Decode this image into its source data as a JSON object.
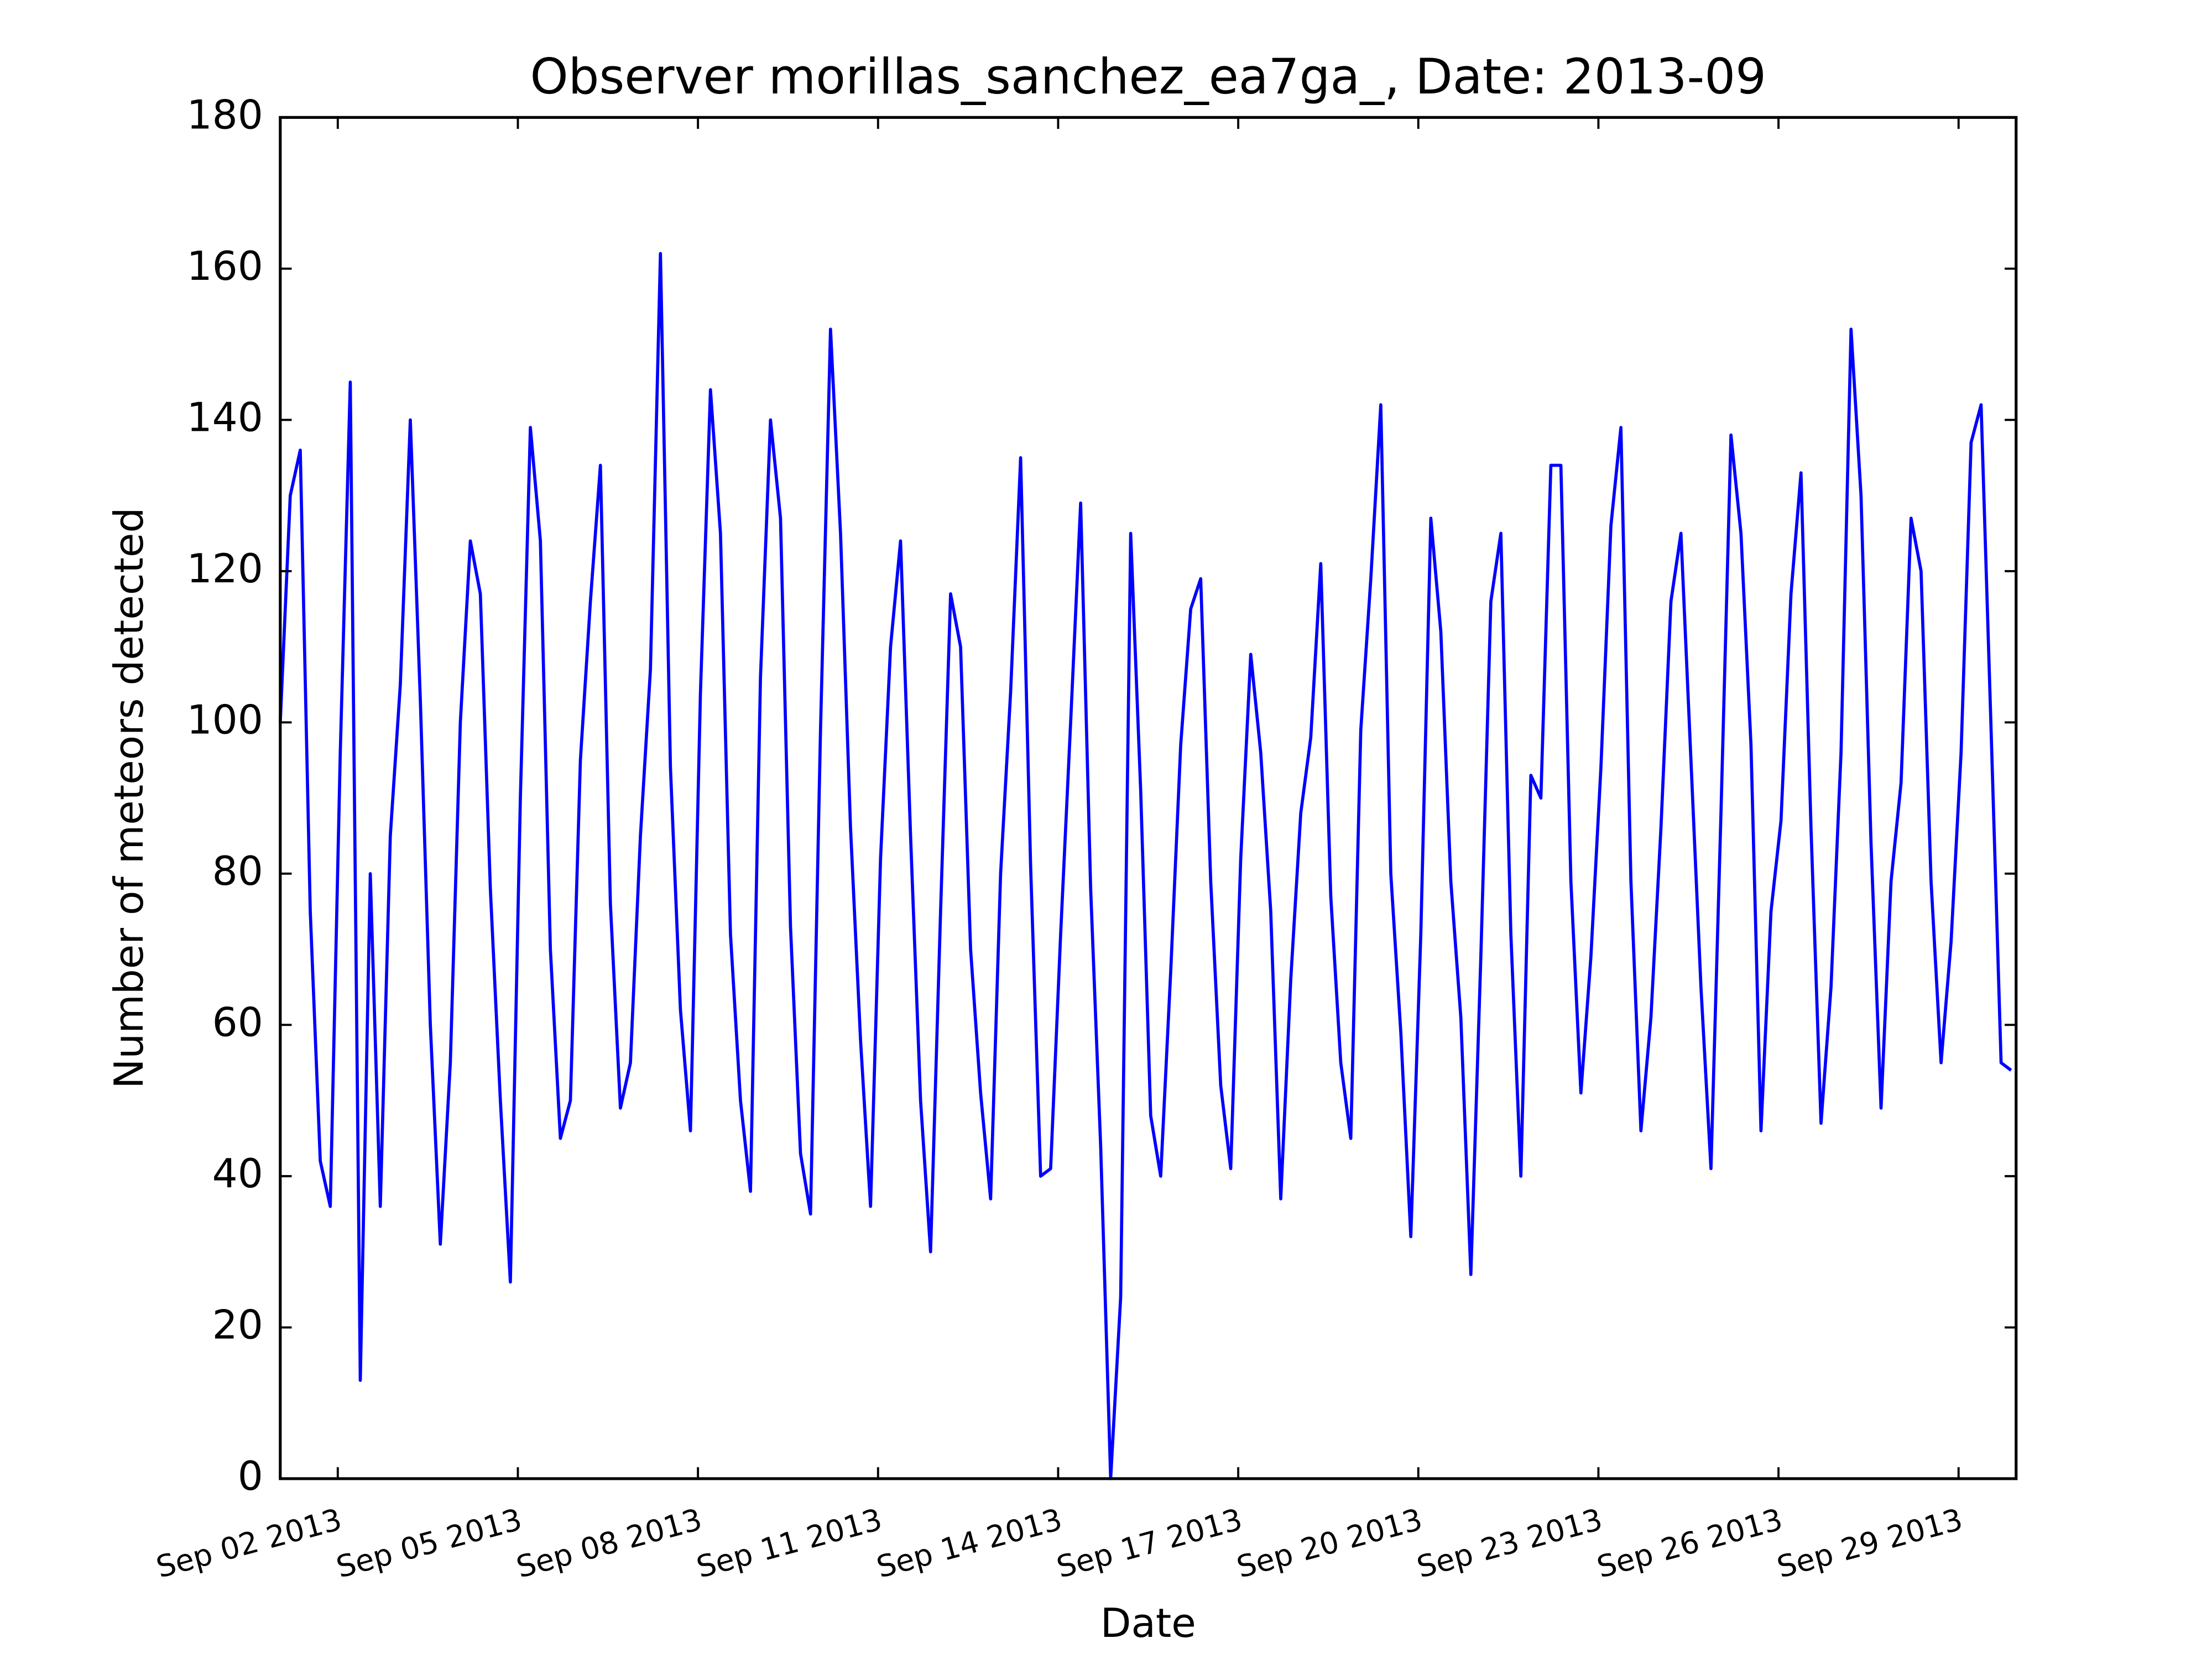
{
  "chart_data": {
    "type": "line",
    "title": "Observer morillas_sanchez_ea7ga_, Date: 2013-09",
    "x_label": "Date",
    "y_label": "Number of meteors detected",
    "x": [
      "2013-09-01 01:00",
      "2013-09-01 05:00",
      "2013-09-01 09:00",
      "2013-09-01 13:00",
      "2013-09-01 17:00",
      "2013-09-01 21:00",
      "2013-09-02 01:00",
      "2013-09-02 05:00",
      "2013-09-02 09:00",
      "2013-09-02 13:00",
      "2013-09-02 17:00",
      "2013-09-02 21:00",
      "2013-09-03 01:00",
      "2013-09-03 05:00",
      "2013-09-03 09:00",
      "2013-09-03 13:00",
      "2013-09-03 17:00",
      "2013-09-03 21:00",
      "2013-09-04 01:00",
      "2013-09-04 05:00",
      "2013-09-04 09:00",
      "2013-09-04 13:00",
      "2013-09-04 17:00",
      "2013-09-04 21:00",
      "2013-09-05 01:00",
      "2013-09-05 05:00",
      "2013-09-05 09:00",
      "2013-09-05 13:00",
      "2013-09-05 17:00",
      "2013-09-05 21:00",
      "2013-09-06 01:00",
      "2013-09-06 05:00",
      "2013-09-06 09:00",
      "2013-09-06 13:00",
      "2013-09-06 17:00",
      "2013-09-06 21:00",
      "2013-09-07 01:00",
      "2013-09-07 05:00",
      "2013-09-07 09:00",
      "2013-09-07 13:00",
      "2013-09-07 17:00",
      "2013-09-07 21:00",
      "2013-09-08 01:00",
      "2013-09-08 05:00",
      "2013-09-08 09:00",
      "2013-09-08 13:00",
      "2013-09-08 17:00",
      "2013-09-08 21:00",
      "2013-09-09 01:00",
      "2013-09-09 05:00",
      "2013-09-09 09:00",
      "2013-09-09 13:00",
      "2013-09-09 17:00",
      "2013-09-09 21:00",
      "2013-09-10 01:00",
      "2013-09-10 05:00",
      "2013-09-10 09:00",
      "2013-09-10 13:00",
      "2013-09-10 17:00",
      "2013-09-10 21:00",
      "2013-09-11 01:00",
      "2013-09-11 05:00",
      "2013-09-11 09:00",
      "2013-09-11 13:00",
      "2013-09-11 17:00",
      "2013-09-11 21:00",
      "2013-09-12 01:00",
      "2013-09-12 05:00",
      "2013-09-12 09:00",
      "2013-09-12 13:00",
      "2013-09-12 17:00",
      "2013-09-12 21:00",
      "2013-09-13 01:00",
      "2013-09-13 05:00",
      "2013-09-13 09:00",
      "2013-09-13 13:00",
      "2013-09-13 17:00",
      "2013-09-13 21:00",
      "2013-09-14 01:00",
      "2013-09-14 05:00",
      "2013-09-14 09:00",
      "2013-09-14 13:00",
      "2013-09-14 17:00",
      "2013-09-14 21:00",
      "2013-09-15 01:00",
      "2013-09-15 05:00",
      "2013-09-15 09:00",
      "2013-09-15 13:00",
      "2013-09-15 17:00",
      "2013-09-15 21:00",
      "2013-09-16 01:00",
      "2013-09-16 05:00",
      "2013-09-16 09:00",
      "2013-09-16 13:00",
      "2013-09-16 17:00",
      "2013-09-16 21:00",
      "2013-09-17 01:00",
      "2013-09-17 05:00",
      "2013-09-17 09:00",
      "2013-09-17 13:00",
      "2013-09-17 17:00",
      "2013-09-17 21:00",
      "2013-09-18 01:00",
      "2013-09-18 05:00",
      "2013-09-18 09:00",
      "2013-09-18 13:00",
      "2013-09-18 17:00",
      "2013-09-18 21:00",
      "2013-09-19 01:00",
      "2013-09-19 05:00",
      "2013-09-19 09:00",
      "2013-09-19 13:00",
      "2013-09-19 17:00",
      "2013-09-19 21:00",
      "2013-09-20 01:00",
      "2013-09-20 05:00",
      "2013-09-20 09:00",
      "2013-09-20 13:00",
      "2013-09-20 17:00",
      "2013-09-20 21:00",
      "2013-09-21 01:00",
      "2013-09-21 05:00",
      "2013-09-21 09:00",
      "2013-09-21 13:00",
      "2013-09-21 17:00",
      "2013-09-21 21:00",
      "2013-09-22 01:00",
      "2013-09-22 05:00",
      "2013-09-22 09:00",
      "2013-09-22 13:00",
      "2013-09-22 17:00",
      "2013-09-22 21:00",
      "2013-09-23 01:00",
      "2013-09-23 05:00",
      "2013-09-23 09:00",
      "2013-09-23 13:00",
      "2013-09-23 17:00",
      "2013-09-23 21:00",
      "2013-09-24 01:00",
      "2013-09-24 05:00",
      "2013-09-24 09:00",
      "2013-09-24 13:00",
      "2013-09-24 17:00",
      "2013-09-24 21:00",
      "2013-09-25 01:00",
      "2013-09-25 05:00",
      "2013-09-25 09:00",
      "2013-09-25 13:00",
      "2013-09-25 17:00",
      "2013-09-25 21:00",
      "2013-09-26 01:00",
      "2013-09-26 05:00",
      "2013-09-26 09:00",
      "2013-09-26 13:00",
      "2013-09-26 17:00",
      "2013-09-26 21:00",
      "2013-09-27 01:00",
      "2013-09-27 05:00",
      "2013-09-27 09:00",
      "2013-09-27 13:00",
      "2013-09-27 17:00",
      "2013-09-27 21:00",
      "2013-09-28 01:00",
      "2013-09-28 05:00",
      "2013-09-28 09:00",
      "2013-09-28 13:00",
      "2013-09-28 17:00",
      "2013-09-28 21:00",
      "2013-09-29 01:00",
      "2013-09-29 05:00",
      "2013-09-29 09:00",
      "2013-09-29 13:00",
      "2013-09-29 17:00",
      "2013-09-29 21:00"
    ],
    "series": [
      {
        "name": "meteors",
        "color": "#0000ff",
        "values": [
          100,
          130,
          136,
          75,
          42,
          36,
          96,
          145,
          13,
          80,
          36,
          85,
          105,
          140,
          103,
          60,
          31,
          55,
          100,
          124,
          117,
          78,
          50,
          26,
          90,
          139,
          124,
          70,
          45,
          50,
          95,
          116,
          134,
          76,
          49,
          55,
          85,
          107,
          162,
          94,
          62,
          46,
          104,
          144,
          125,
          72,
          50,
          38,
          106,
          140,
          127,
          73,
          43,
          35,
          99,
          152,
          125,
          86,
          58,
          36,
          82,
          110,
          124,
          85,
          50,
          30,
          75,
          117,
          110,
          70,
          51,
          37,
          80,
          104,
          135,
          81,
          40,
          41,
          72,
          100,
          129,
          78,
          44,
          0,
          24,
          125,
          91,
          48,
          40,
          67,
          97,
          115,
          119,
          79,
          52,
          41,
          82,
          109,
          96,
          75,
          37,
          66,
          88,
          98,
          121,
          77,
          55,
          45,
          99,
          119,
          142,
          80,
          59,
          32,
          72,
          127,
          112,
          79,
          61,
          27,
          69,
          116,
          125,
          72,
          40,
          93,
          90,
          134,
          134,
          79,
          51,
          69,
          94,
          126,
          139,
          79,
          46,
          61,
          86,
          116,
          125,
          95,
          65,
          41,
          88,
          138,
          125,
          97,
          46,
          75,
          87,
          117,
          133,
          86,
          47,
          65,
          96,
          152,
          130,
          84,
          49,
          79,
          92,
          127,
          120,
          79,
          55,
          71,
          96,
          137,
          142,
          99,
          55,
          54
        ]
      }
    ],
    "xlim": [
      "2013-09-01 01:00",
      "2013-09-29 23:00"
    ],
    "xticks": [
      {
        "value": "2013-09-02 00:00",
        "label": "Sep 02 2013"
      },
      {
        "value": "2013-09-05 00:00",
        "label": "Sep 05 2013"
      },
      {
        "value": "2013-09-08 00:00",
        "label": "Sep 08 2013"
      },
      {
        "value": "2013-09-11 00:00",
        "label": "Sep 11 2013"
      },
      {
        "value": "2013-09-14 00:00",
        "label": "Sep 14 2013"
      },
      {
        "value": "2013-09-17 00:00",
        "label": "Sep 17 2013"
      },
      {
        "value": "2013-09-20 00:00",
        "label": "Sep 20 2013"
      },
      {
        "value": "2013-09-23 00:00",
        "label": "Sep 23 2013"
      },
      {
        "value": "2013-09-26 00:00",
        "label": "Sep 26 2013"
      },
      {
        "value": "2013-09-29 00:00",
        "label": "Sep 29 2013"
      }
    ],
    "ylim": [
      0,
      180
    ],
    "yticks": [
      0,
      20,
      40,
      60,
      80,
      100,
      120,
      140,
      160,
      180
    ],
    "grid": false
  }
}
